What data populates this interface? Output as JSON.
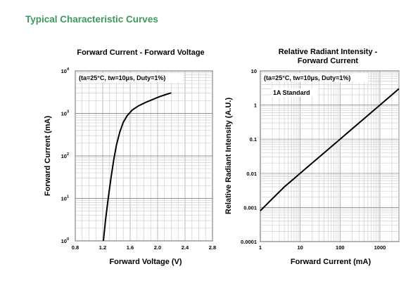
{
  "page": {
    "section_title": "Typical Characteristic Curves",
    "accent_color": "#3a9a5c"
  },
  "chart_data": [
    {
      "type": "line",
      "title": "Forward Current - Forward Voltage",
      "xlabel": "Forward Voltage (V)",
      "ylabel": "Forward Current (mA)",
      "annotation": "(ta=25°C, tw=10μs, Duty=1%)",
      "x_scale": "linear",
      "y_scale": "log",
      "xlim": [
        0.8,
        2.8
      ],
      "ylim": [
        1,
        10000
      ],
      "x_ticks": [
        "0.8",
        "1.2",
        "1.6",
        "2.0",
        "2.4",
        "2.8"
      ],
      "y_ticks": [
        {
          "base": "10",
          "exp": "0"
        },
        {
          "base": "10",
          "exp": "1"
        },
        {
          "base": "10",
          "exp": "2"
        },
        {
          "base": "10",
          "exp": "3"
        },
        {
          "base": "10",
          "exp": "4"
        }
      ],
      "grid": true,
      "series": [
        {
          "x": [
            1.21,
            1.24,
            1.28,
            1.32,
            1.36,
            1.4,
            1.45,
            1.5,
            1.56,
            1.63,
            1.72,
            1.82,
            1.92,
            2.02,
            2.12,
            2.2
          ],
          "y": [
            1,
            3,
            10,
            30,
            80,
            180,
            370,
            620,
            900,
            1200,
            1500,
            1800,
            2100,
            2450,
            2780,
            3050
          ]
        }
      ]
    },
    {
      "type": "line",
      "title": "Relative Radiant Intensity - Forward Current",
      "xlabel": "Forward Current (mA)",
      "ylabel": "Relative Radiant Intensity (A.U.)",
      "annotation": "(ta=25°C, tw=10μs, Duty=1%)",
      "reference_label": "1A Standard",
      "x_scale": "log",
      "y_scale": "log",
      "xlim": [
        1,
        3000
      ],
      "ylim": [
        0.0001,
        10
      ],
      "x_ticks": [
        "1",
        "10",
        "100",
        "1000"
      ],
      "y_ticks": [
        "0.0001",
        "0.001",
        "0.01",
        "0.1",
        "1",
        "10"
      ],
      "grid": true,
      "series": [
        {
          "x": [
            1,
            2,
            4,
            7,
            10,
            20,
            50,
            100,
            200,
            500,
            1000,
            2000,
            3000
          ],
          "y": [
            0.0008,
            0.0018,
            0.004,
            0.007,
            0.01,
            0.02,
            0.05,
            0.1,
            0.2,
            0.5,
            1.0,
            2.0,
            3.0
          ]
        }
      ]
    }
  ]
}
